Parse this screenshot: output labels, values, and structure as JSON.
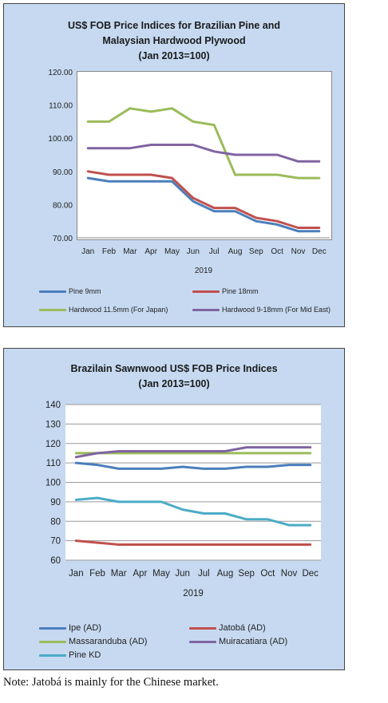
{
  "charts": [
    {
      "title_lines": [
        "US$ FOB Price Indices for Brazilian Pine and",
        "Malaysian Hardwood Plywood",
        "(Jan 2013=100)"
      ],
      "legend": [
        "Pine 9mm",
        "Pine 18mm",
        "Hardwood 11.5mm (For Japan)",
        "Hardwood 9-18mm (For Mid East)"
      ]
    },
    {
      "title_lines": [
        "Brazilain Sawnwood US$ FOB Price Indices",
        "(Jan 2013=100)"
      ],
      "legend": [
        "Ipe (AD)",
        "Jatobá (AD)",
        "Massaranduba (AD)",
        "Muiracatiara (AD)",
        "Pine KD"
      ]
    }
  ],
  "note": "Note: Jatobá is mainly for the Chinese market.",
  "chart_data": [
    {
      "type": "line",
      "title": "US$ FOB Price Indices for Brazilian Pine and Malaysian Hardwood Plywood (Jan 2013=100)",
      "categories": [
        "Jan",
        "Feb",
        "Mar",
        "Apr",
        "May",
        "Jun",
        "Jul",
        "Aug",
        "Sep",
        "Oct",
        "Nov",
        "Dec"
      ],
      "xlabel": "2019",
      "ylim": [
        70,
        120
      ],
      "yticks": [
        "70.00",
        "80.00",
        "90.00",
        "100.00",
        "110.00",
        "120.00"
      ],
      "grid": false,
      "legend_position": "bottom",
      "series": [
        {
          "name": "Pine 9mm",
          "color": "#4a7ebb",
          "values": [
            88,
            87,
            87,
            87,
            87,
            81,
            78,
            78,
            75,
            74,
            72,
            72
          ]
        },
        {
          "name": "Pine 18mm",
          "color": "#c0504d",
          "values": [
            90,
            89,
            89,
            89,
            88,
            82,
            79,
            79,
            76,
            75,
            73,
            73
          ]
        },
        {
          "name": "Hardwood 11.5mm (For Japan)",
          "color": "#9bbb59",
          "values": [
            105,
            105,
            109,
            108,
            109,
            105,
            104,
            89,
            89,
            89,
            88,
            88
          ]
        },
        {
          "name": "Hardwood 9-18mm (For Mid East)",
          "color": "#8064a2",
          "values": [
            97,
            97,
            97,
            98,
            98,
            98,
            96,
            95,
            95,
            95,
            93,
            93
          ]
        }
      ]
    },
    {
      "type": "line",
      "title": "Brazilain Sawnwood US$ FOB Price Indices (Jan 2013=100)",
      "categories": [
        "Jan",
        "Feb",
        "Mar",
        "Apr",
        "May",
        "Jun",
        "Jul",
        "Aug",
        "Sep",
        "Oct",
        "Nov",
        "Dec"
      ],
      "xlabel": "2019",
      "ylim": [
        60,
        140
      ],
      "yticks": [
        "60",
        "70",
        "80",
        "90",
        "100",
        "110",
        "120",
        "130",
        "140"
      ],
      "grid": true,
      "legend_position": "bottom",
      "series": [
        {
          "name": "Ipe (AD)",
          "color": "#4a7ebb",
          "values": [
            110,
            109,
            107,
            107,
            107,
            108,
            107,
            107,
            108,
            108,
            109,
            109
          ]
        },
        {
          "name": "Jatobá (AD)",
          "color": "#c0504d",
          "values": [
            70,
            69,
            68,
            68,
            68,
            68,
            68,
            68,
            68,
            68,
            68,
            68
          ]
        },
        {
          "name": "Massaranduba (AD)",
          "color": "#9bbb59",
          "values": [
            115,
            115,
            115,
            115,
            115,
            115,
            115,
            115,
            115,
            115,
            115,
            115
          ]
        },
        {
          "name": "Muiracatiara (AD)",
          "color": "#8064a2",
          "values": [
            113,
            115,
            116,
            116,
            116,
            116,
            116,
            116,
            118,
            118,
            118,
            118
          ]
        },
        {
          "name": "Pine KD",
          "color": "#4bacc6",
          "values": [
            91,
            92,
            90,
            90,
            90,
            86,
            84,
            84,
            81,
            81,
            78,
            78
          ]
        }
      ]
    }
  ]
}
